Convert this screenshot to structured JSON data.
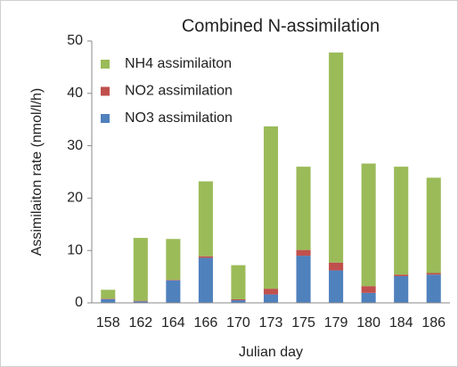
{
  "chart_data": {
    "type": "stacked_bar",
    "title": "Combined N-assimilation",
    "x_label": "Julian day",
    "y_label": "Assimilaiton rate (nmol/l/h)",
    "categories": [
      "158",
      "162",
      "164",
      "166",
      "170",
      "173",
      "175",
      "179",
      "180",
      "184",
      "186"
    ],
    "series": [
      {
        "name": "NO3 assimilation",
        "color": "#4f81bd",
        "values": [
          0.7,
          0.3,
          4.3,
          8.6,
          0.5,
          1.6,
          9.0,
          6.2,
          1.9,
          5.1,
          5.4
        ]
      },
      {
        "name": "NO2 assimilation",
        "color": "#c0504d",
        "values": [
          0.1,
          0.1,
          0.1,
          0.3,
          0.2,
          1.1,
          1.1,
          1.5,
          1.3,
          0.3,
          0.3
        ]
      },
      {
        "name": "NH4 assimilaiton",
        "color": "#9bbb59",
        "values": [
          1.7,
          12.0,
          7.8,
          14.3,
          6.5,
          31.0,
          15.9,
          40.1,
          23.4,
          20.6,
          18.2
        ]
      }
    ],
    "ylim": [
      0,
      50
    ],
    "yticks": [
      0,
      10,
      20,
      30,
      40,
      50
    ],
    "grid": false
  }
}
